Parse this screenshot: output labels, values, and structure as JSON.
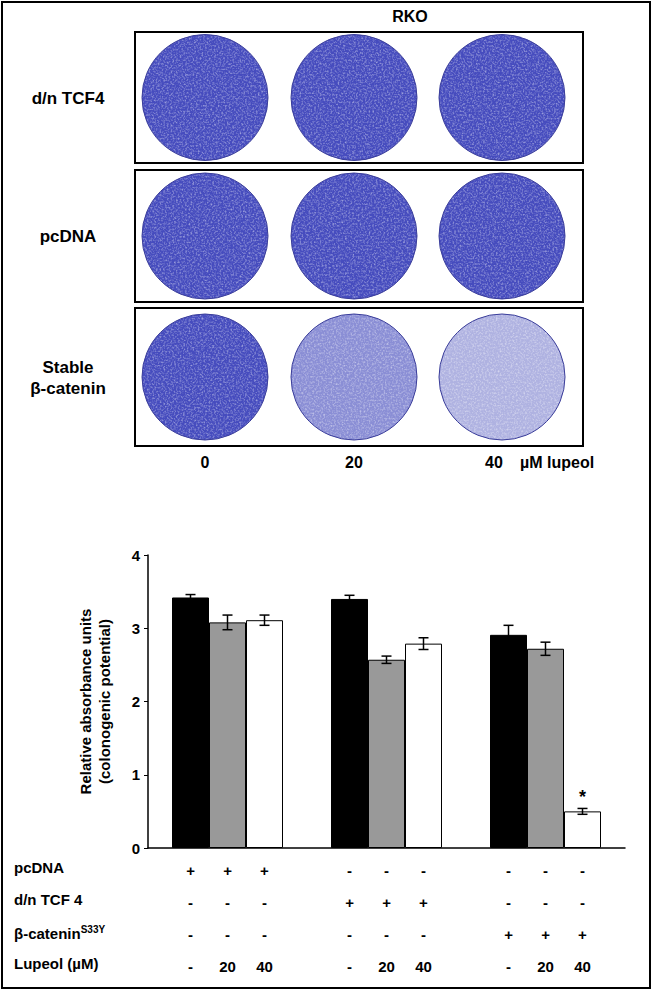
{
  "plates": {
    "title": "RKO",
    "rows": [
      [
        "d/n TCF4"
      ],
      [
        "pcDNA"
      ],
      [
        "Stable",
        "β-catenin"
      ]
    ],
    "columns": [
      0,
      20,
      40
    ],
    "column_unit": "µM lupeol"
  },
  "chart_data": {
    "type": "bar",
    "ylabel": [
      "Relative absorbance units",
      "(colonogenic potential)"
    ],
    "categories": [
      null,
      null,
      null
    ],
    "ylim": [
      0,
      4
    ],
    "yticks": [
      0,
      1,
      2,
      3,
      4
    ],
    "grid": false,
    "series": [
      {
        "color": "#000000",
        "values": [
          3.42,
          3.4,
          2.91
        ],
        "errors": [
          0.04,
          0.05,
          0.13
        ]
      },
      {
        "color": "#999999",
        "values": [
          3.08,
          2.57,
          2.72
        ],
        "errors": [
          0.1,
          0.05,
          0.09
        ]
      },
      {
        "color": "#ffffff",
        "values": [
          3.11,
          2.79,
          0.5
        ],
        "errors": [
          0.07,
          0.08,
          0.04
        ]
      }
    ],
    "annotations": [
      {
        "text": "*",
        "category": 2,
        "series": 2
      }
    ],
    "x_table": [
      {
        "label": "pcDNA",
        "cells": [
          [
            "+",
            "+",
            "+"
          ],
          [
            "-",
            "-",
            "-"
          ],
          [
            "-",
            "-",
            "-"
          ]
        ]
      },
      {
        "label": "d/n TCF 4",
        "cells": [
          [
            "-",
            "-",
            "-"
          ],
          [
            "+",
            "+",
            "+"
          ],
          [
            "-",
            "-",
            "-"
          ]
        ]
      },
      {
        "label": "β-catenin",
        "label_sup": "S33Y",
        "cells": [
          [
            "-",
            "-",
            "-"
          ],
          [
            "-",
            "-",
            "-"
          ],
          [
            "+",
            "+",
            "+"
          ]
        ]
      },
      {
        "label": "Lupeol (µM)",
        "cells": [
          [
            "-",
            "20",
            "40"
          ],
          [
            "-",
            "20",
            "40"
          ],
          [
            "-",
            "20",
            "40"
          ]
        ]
      }
    ]
  }
}
